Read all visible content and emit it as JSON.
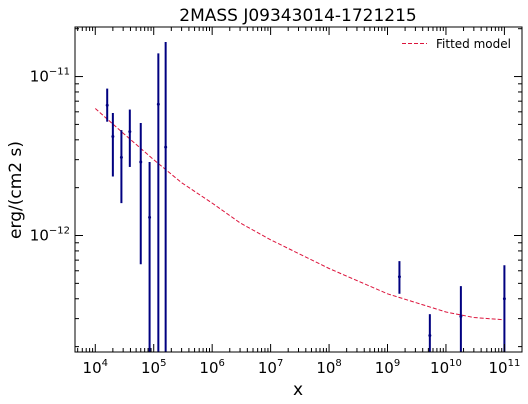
{
  "chart_data": {
    "type": "scatter",
    "title": "2MASS J09343014-1721215",
    "xlabel": "x",
    "ylabel": "erg/(cm2 s)",
    "xscale": "log",
    "yscale": "log",
    "xlim": [
      4500.0,
      200000000000.0
    ],
    "ylim": [
      1.85e-13,
      2.05e-11
    ],
    "x_tick_labels": [
      {
        "base": "10",
        "exp": "4"
      },
      {
        "base": "10",
        "exp": "5"
      },
      {
        "base": "10",
        "exp": "6"
      },
      {
        "base": "10",
        "exp": "7"
      },
      {
        "base": "10",
        "exp": "8"
      },
      {
        "base": "10",
        "exp": "9"
      },
      {
        "base": "10",
        "exp": "10"
      },
      {
        "base": "10",
        "exp": "11"
      }
    ],
    "y_tick_labels": [
      {
        "base": "10",
        "exp": "−12"
      },
      {
        "base": "10",
        "exp": "−11"
      }
    ],
    "grid": false,
    "legend": {
      "position": "top-right",
      "entries": [
        "Fitted model"
      ]
    },
    "colors": {
      "data": "#000080",
      "model": "#dc143c"
    },
    "series": [
      {
        "kind": "errorbar",
        "points": [
          {
            "x": 16000.0,
            "y": 6.6e-12,
            "ylo": 5.2e-12,
            "yhi": 8.4e-12
          },
          {
            "x": 20000.0,
            "y": 4.2e-12,
            "ylo": 2.35e-12,
            "yhi": 5.9e-12
          },
          {
            "x": 28000.0,
            "y": 3.1e-12,
            "ylo": 1.6e-12,
            "yhi": 4.6e-12
          },
          {
            "x": 39000.0,
            "y": 4.5e-12,
            "ylo": 2.7e-12,
            "yhi": 6.2e-12
          },
          {
            "x": 60000.0,
            "y": 2.9e-12,
            "ylo": 6.6e-13,
            "yhi": 5.1e-12
          },
          {
            "x": 85000.0,
            "y": 1.3e-12,
            "ylo": 1.85e-13,
            "yhi": 2.9e-12
          },
          {
            "x": 120000.0,
            "y": 6.7e-12,
            "ylo": 1.85e-13,
            "yhi": 1.4e-11
          },
          {
            "x": 160000.0,
            "y": 3.6e-12,
            "ylo": 1.85e-13,
            "yhi": 1.65e-11
          },
          {
            "x": 1600000000.0,
            "y": 5.5e-13,
            "ylo": 4.3e-13,
            "yhi": 6.9e-13
          },
          {
            "x": 5300000000.0,
            "y": 2.35e-13,
            "ylo": 1.85e-13,
            "yhi": 3.2e-13
          },
          {
            "x": 18000000000.0,
            "y": 3.1e-13,
            "ylo": 1.85e-13,
            "yhi": 4.8e-13
          },
          {
            "x": 100000000000.0,
            "y": 4e-13,
            "ylo": 1.85e-13,
            "yhi": 6.5e-13
          }
        ]
      },
      {
        "name": "Fitted model",
        "kind": "line",
        "style": "dashed",
        "x": [
          10000.0,
          30000.0,
          100000.0,
          300000.0,
          1000000.0,
          3000000.0,
          10000000.0,
          100000000.0,
          1000000000.0,
          10000000000.0,
          30000000000.0,
          100000000000.0
        ],
        "y": [
          6.3e-12,
          4.4e-12,
          3e-12,
          2.15e-12,
          1.6e-12,
          1.2e-12,
          9.4e-13,
          6.2e-13,
          4.3e-13,
          3.3e-13,
          3.05e-13,
          2.95e-13
        ]
      }
    ]
  }
}
